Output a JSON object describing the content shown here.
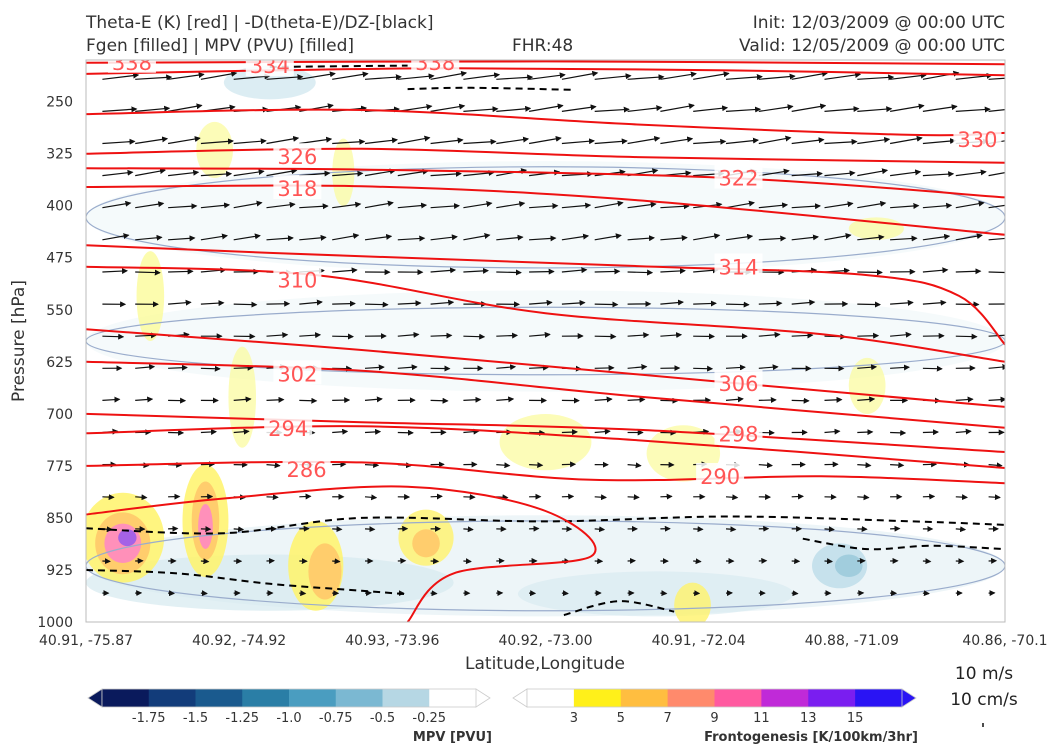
{
  "header": {
    "title_line1": "Theta-E (K) [red] | -D(theta-E)/DZ-[black]",
    "title_line2": "Fgen [filled] | MPV (PVU) [filled]",
    "fhr": "FHR:48",
    "init": "Init: 12/03/2009 @ 00:00 UTC",
    "valid": "Valid: 12/05/2009 @ 00:00 UTC"
  },
  "vector_reference": {
    "line1": "10 m/s",
    "line2": "10 cm/s"
  },
  "colors": {
    "theta_e_contour": "#ee1111",
    "theta_e_label": "#ff5555",
    "stability_contour": "#000000",
    "mpv_outline": "#9aaccc",
    "wind_vector": "#111111"
  },
  "chart_data": {
    "type": "heatmap",
    "xlabel": "Latitude,Longitude",
    "ylabel": "Pressure [hPa]",
    "x_ticks": [
      "40.91, -75.87",
      "40.92, -74.92",
      "40.93, -73.96",
      "40.92, -73.00",
      "40.91, -72.04",
      "40.88, -71.09",
      "40.86, -70.1"
    ],
    "y_ticks": [
      250,
      325,
      400,
      475,
      550,
      625,
      700,
      775,
      850,
      925,
      1000
    ],
    "ylim": [
      1000,
      190
    ],
    "theta_e_labels": [
      {
        "label": "334",
        "x": 0.2,
        "p": 199
      },
      {
        "label": "338",
        "x": 0.05,
        "p": 194
      },
      {
        "label": "338",
        "x": 0.38,
        "p": 194
      },
      {
        "label": "330",
        "x": 0.97,
        "p": 305
      },
      {
        "label": "326",
        "x": 0.23,
        "p": 330
      },
      {
        "label": "322",
        "x": 0.71,
        "p": 361
      },
      {
        "label": "318",
        "x": 0.23,
        "p": 376
      },
      {
        "label": "314",
        "x": 0.71,
        "p": 489
      },
      {
        "label": "310",
        "x": 0.23,
        "p": 508
      },
      {
        "label": "306",
        "x": 0.71,
        "p": 657
      },
      {
        "label": "302",
        "x": 0.23,
        "p": 643
      },
      {
        "label": "298",
        "x": 0.71,
        "p": 730
      },
      {
        "label": "294",
        "x": 0.22,
        "p": 722
      },
      {
        "label": "290",
        "x": 0.69,
        "p": 791
      },
      {
        "label": "286",
        "x": 0.24,
        "p": 781
      }
    ],
    "theta_e_contours": [
      {
        "value": 338,
        "points": [
          [
            0,
            194
          ],
          [
            0.5,
            192
          ],
          [
            1,
            196
          ]
        ]
      },
      {
        "value": 334,
        "points": [
          [
            0,
            210
          ],
          [
            0.2,
            205
          ],
          [
            0.4,
            202
          ],
          [
            0.7,
            205
          ],
          [
            1,
            212
          ]
        ]
      },
      {
        "value": 330,
        "points": [
          [
            0,
            268
          ],
          [
            0.3,
            262
          ],
          [
            0.6,
            283
          ],
          [
            0.9,
            298
          ],
          [
            1,
            295
          ]
        ]
      },
      {
        "value": 326,
        "points": [
          [
            0,
            325
          ],
          [
            0.3,
            318
          ],
          [
            0.6,
            330
          ],
          [
            1,
            338
          ]
        ]
      },
      {
        "value": 322,
        "points": [
          [
            0,
            346
          ],
          [
            0.3,
            348
          ],
          [
            0.7,
            360
          ],
          [
            1,
            388
          ]
        ]
      },
      {
        "value": 318,
        "points": [
          [
            0,
            373
          ],
          [
            0.3,
            372
          ],
          [
            0.6,
            392
          ],
          [
            1,
            442
          ]
        ]
      },
      {
        "value": 314,
        "points": [
          [
            0,
            457
          ],
          [
            0.2,
            468
          ],
          [
            0.6,
            487
          ],
          [
            0.85,
            500
          ],
          [
            0.95,
            530
          ],
          [
            1,
            600
          ]
        ]
      },
      {
        "value": 310,
        "points": [
          [
            0,
            488
          ],
          [
            0.25,
            500
          ],
          [
            0.5,
            555
          ],
          [
            0.8,
            585
          ],
          [
            1,
            625
          ]
        ]
      },
      {
        "value": 306,
        "points": [
          [
            0,
            578
          ],
          [
            0.3,
            608
          ],
          [
            0.7,
            655
          ],
          [
            1,
            690
          ]
        ]
      },
      {
        "value": 302,
        "points": [
          [
            0,
            625
          ],
          [
            0.3,
            638
          ],
          [
            0.6,
            675
          ],
          [
            1,
            720
          ]
        ]
      },
      {
        "value": 298,
        "points": [
          [
            0,
            700
          ],
          [
            0.3,
            712
          ],
          [
            0.6,
            723
          ],
          [
            1,
            755
          ]
        ]
      },
      {
        "value": 294,
        "points": [
          [
            0,
            728
          ],
          [
            0.3,
            718
          ],
          [
            0.6,
            738
          ],
          [
            1,
            778
          ]
        ]
      },
      {
        "value": 290,
        "points": [
          [
            0,
            775
          ],
          [
            0.3,
            770
          ],
          [
            0.55,
            795
          ],
          [
            0.8,
            790
          ],
          [
            1,
            800
          ]
        ]
      },
      {
        "value": 286,
        "points": [
          [
            0,
            845
          ],
          [
            0.15,
            822
          ],
          [
            0.35,
            805
          ],
          [
            0.5,
            840
          ],
          [
            0.55,
            905
          ],
          [
            0.4,
            930
          ],
          [
            0.35,
            1000
          ]
        ]
      }
    ],
    "mpv_colorbar": {
      "title": "MPV [PVU]",
      "tick_labels": [
        "-1.75",
        "-1.5",
        "-1.25",
        "-1.0",
        "-0.75",
        "-0.5",
        "-0.25"
      ],
      "colors": [
        "#0a1a5c",
        "#123c7a",
        "#1a5a8e",
        "#2a7ea6",
        "#4a9dc0",
        "#7bb8d2",
        "#b6d7e4",
        "#ffffff"
      ]
    },
    "fgen_colorbar": {
      "title": "Frontogenesis [K/100km/3hr]",
      "tick_labels": [
        "3",
        "5",
        "7",
        "9",
        "11",
        "13",
        "15"
      ],
      "colors": [
        "#ffffff",
        "#fff01a",
        "#ffbe40",
        "#ff8a6c",
        "#ff5aa0",
        "#c02ad8",
        "#7a1ef0",
        "#2a14f4"
      ]
    }
  }
}
